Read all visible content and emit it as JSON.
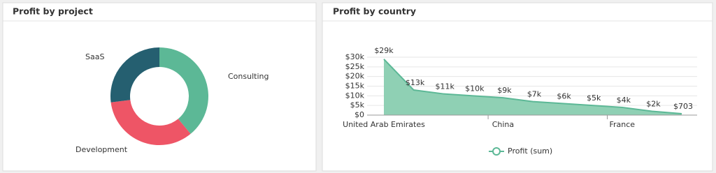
{
  "chart_data": [
    {
      "type": "pie",
      "title": "Profit by project",
      "categories": [
        "Consulting",
        "Development",
        "SaaS"
      ],
      "values": [
        39,
        34,
        27
      ],
      "colors": [
        "#5cb896",
        "#ee5566",
        "#255f70"
      ]
    },
    {
      "type": "area",
      "title": "Profit by country",
      "categories": [
        "United Arab Emirates",
        null,
        null,
        null,
        "China",
        null,
        null,
        null,
        "France",
        null,
        null
      ],
      "series": [
        {
          "name": "Profit (sum)",
          "color": "#5cb896",
          "fill": "#8fd0b4",
          "values": [
            29000,
            13000,
            11000,
            10000,
            9000,
            7000,
            6000,
            5000,
            4000,
            2000,
            703
          ],
          "value_labels": [
            "$29k",
            "$13k",
            "$11k",
            "$10k",
            "$9k",
            "$7k",
            "$6k",
            "$5k",
            "$4k",
            "$2k",
            "$703"
          ]
        }
      ],
      "ylim": [
        0,
        30000
      ],
      "yticks": [
        {
          "value": 0,
          "label": "$0"
        },
        {
          "value": 5000,
          "label": "$5k"
        },
        {
          "value": 10000,
          "label": "$10k"
        },
        {
          "value": 15000,
          "label": "$15k"
        },
        {
          "value": 20000,
          "label": "$20k"
        },
        {
          "value": 25000,
          "label": "$25k"
        },
        {
          "value": 30000,
          "label": "$30k"
        }
      ],
      "grid": true
    }
  ]
}
